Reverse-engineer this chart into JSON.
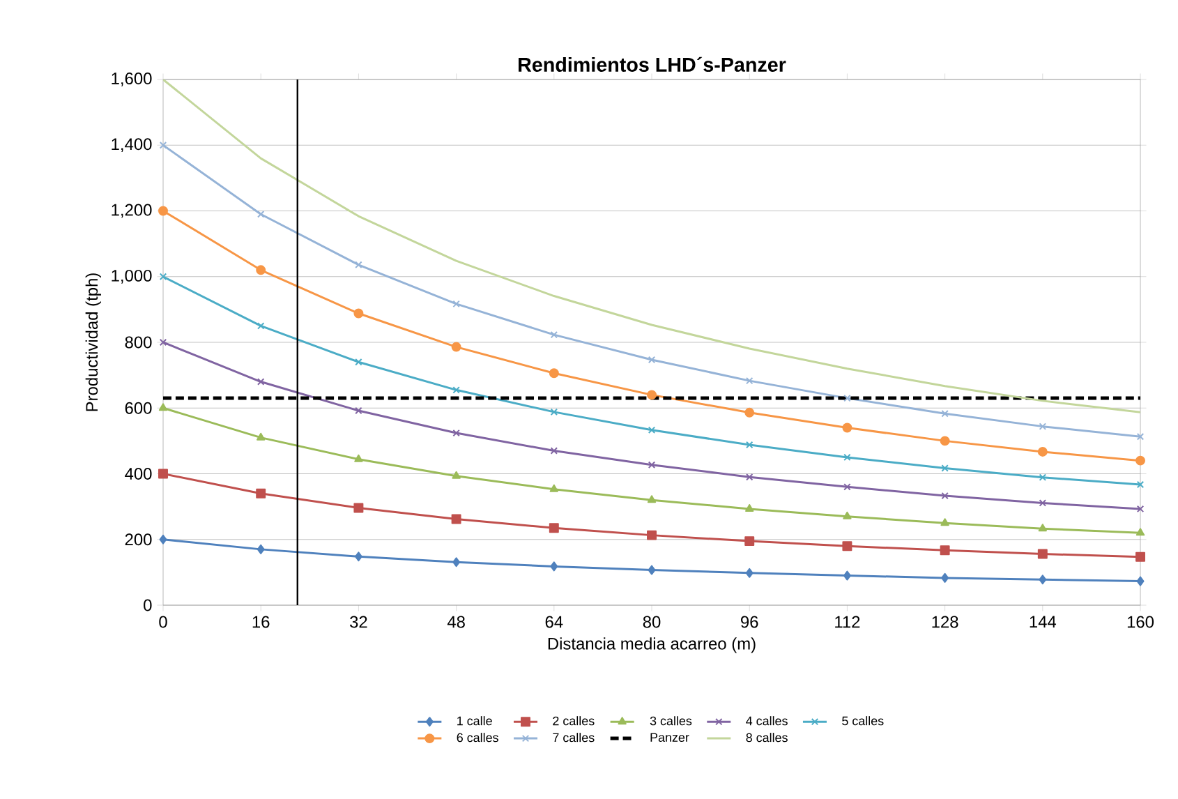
{
  "chart_data": {
    "type": "line",
    "title": "**Rendimientos LHD´s-Panzer**",
    "xlabel": "Distancia media acarreo (m)",
    "ylabel": "Productividad (tph)",
    "x": [
      0,
      16,
      32,
      48,
      64,
      80,
      96,
      112,
      128,
      144,
      160
    ],
    "xlim": [
      0,
      160
    ],
    "xticks": [
      0,
      16,
      32,
      48,
      64,
      80,
      96,
      112,
      128,
      144,
      160
    ],
    "ylim": [
      0,
      1600
    ],
    "yticks": [
      0,
      {
        "value": 200,
        "label": "200"
      },
      {
        "value": 400,
        "label": "400"
      },
      {
        "value": 600,
        "label": "600"
      },
      {
        "value": 800,
        "label": "800"
      },
      {
        "value": 1000,
        "label": "1,000"
      },
      {
        "value": 1200,
        "label": "1,200"
      },
      {
        "value": 1400,
        "label": "1,400"
      },
      {
        "value": 1600,
        "label": "1,600"
      }
    ],
    "grid": "y",
    "legend": "bottom",
    "ref_lines": [
      {
        "axis": "x",
        "value": 22,
        "color": "#000000"
      }
    ],
    "series": [
      {
        "name": "1 calle",
        "color": "#4f81bd",
        "marker": "diamond",
        "values": [
          200,
          170,
          148,
          131,
          118,
          107,
          98,
          90,
          83,
          78,
          73
        ]
      },
      {
        "name": "2 calles",
        "color": "#c0504d",
        "marker": "square",
        "values": [
          400,
          340,
          296,
          262,
          235,
          213,
          195,
          180,
          167,
          156,
          147
        ]
      },
      {
        "name": "3 calles",
        "color": "#9bbb59",
        "marker": "triangle",
        "values": [
          600,
          510,
          444,
          393,
          353,
          320,
          293,
          270,
          250,
          233,
          220
        ]
      },
      {
        "name": "4 calles",
        "color": "#8064a2",
        "marker": "cross",
        "values": [
          800,
          680,
          592,
          524,
          470,
          427,
          390,
          360,
          333,
          311,
          293
        ]
      },
      {
        "name": "5 calles",
        "color": "#4bacc6",
        "marker": "cross",
        "values": [
          1000,
          850,
          740,
          655,
          588,
          533,
          488,
          450,
          417,
          389,
          367
        ]
      },
      {
        "name": "6 calles",
        "color": "#f79646",
        "marker": "circle",
        "values": [
          1200,
          1020,
          888,
          786,
          706,
          640,
          586,
          540,
          500,
          467,
          440
        ]
      },
      {
        "name": "7 calles",
        "color": "#95b3d7",
        "marker": "cross",
        "values": [
          1400,
          1190,
          1036,
          917,
          823,
          747,
          683,
          630,
          583,
          544,
          513
        ]
      },
      {
        "name": "Panzer",
        "color": "#000000",
        "marker": "none",
        "line_style": "dashed",
        "x": [
          0,
          160
        ],
        "values": [
          630,
          630
        ]
      },
      {
        "name": "8 calles",
        "color": "#c3d69b",
        "marker": "none",
        "values": [
          1600,
          1360,
          1184,
          1048,
          941,
          853,
          781,
          720,
          667,
          622,
          587
        ]
      }
    ]
  }
}
